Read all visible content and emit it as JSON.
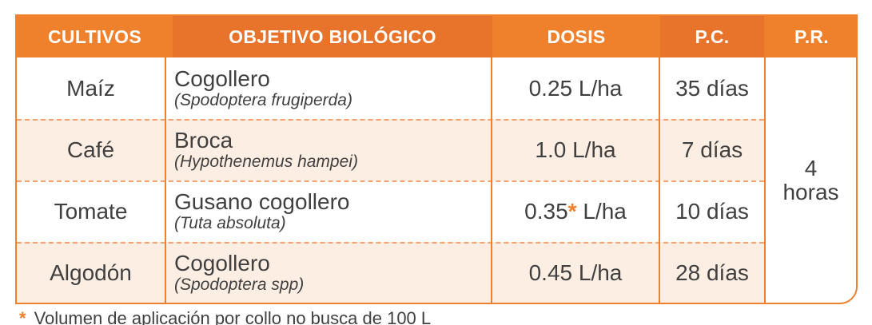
{
  "header": {
    "cultivos": "CULTIVOS",
    "objetivo": "OBJETIVO BIOLÓGICO",
    "dosis": "DOSIS",
    "pc": "P.C.",
    "pr": "P.R."
  },
  "rows": [
    {
      "cultivo": "Maíz",
      "objetivo": "Cogollero",
      "cientifico": "(Spodoptera frugiperda)",
      "dosis": "0.25 L/ha",
      "pc": "35 días"
    },
    {
      "cultivo": "Café",
      "objetivo": "Broca",
      "cientifico": "(Hypothenemus hampei)",
      "dosis": "1.0 L/ha",
      "pc": "7 días"
    },
    {
      "cultivo": "Tomate",
      "objetivo": "Gusano cogollero",
      "cientifico": "(Tuta absoluta)",
      "dosis_value": "0.35",
      "dosis_mark": "*",
      "dosis_unit": " L/ha",
      "pc": "10 días"
    },
    {
      "cultivo": "Algodón",
      "objetivo": "Cogollero",
      "cientifico": "(Spodoptera spp)",
      "dosis": "0.45 L/ha",
      "pc": "28 días"
    }
  ],
  "pr_value": {
    "line1": "4",
    "line2": "horas"
  },
  "footnote": {
    "mark": "*",
    "text": "Volumen de aplicación por collo no busca de 100 L"
  },
  "colors": {
    "accent": "#f0812c",
    "accent_dark": "#e8732a",
    "row_alt": "#fdeee3",
    "text": "#404040"
  }
}
